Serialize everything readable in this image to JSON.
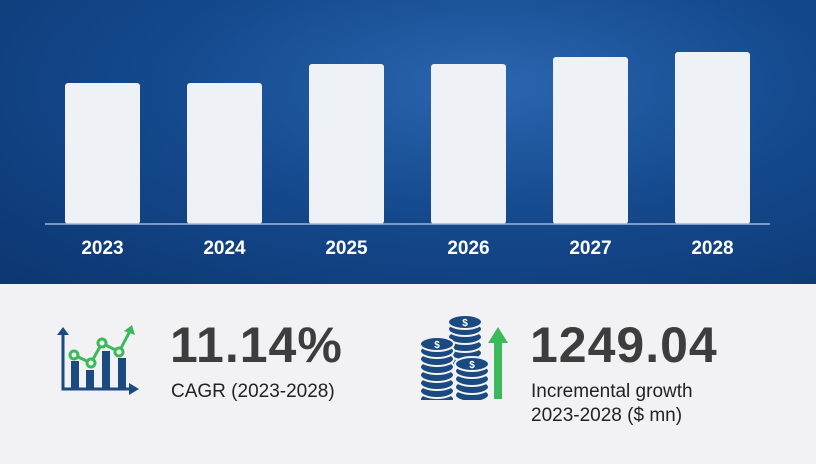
{
  "chart_data": {
    "type": "bar",
    "categories": [
      "2023",
      "2024",
      "2025",
      "2026",
      "2027",
      "2028"
    ],
    "values": [
      141,
      141,
      160,
      160,
      167,
      172
    ],
    "ylim": [
      0,
      175
    ],
    "grid": false,
    "colors": {
      "bar": "#eef1f6",
      "background": "#154a8e"
    }
  },
  "stats": {
    "cagr": {
      "value": "11.14%",
      "label": "CAGR (2023-2028)",
      "icon": "growth-chart-icon"
    },
    "incremental": {
      "value": "1249.04",
      "label_line1": "Incremental growth",
      "label_line2": "2023-2028 ($ mn)",
      "icon": "coins-arrow-up-icon"
    }
  },
  "colors": {
    "accent_green": "#3cb95a",
    "icon_blue": "#1b4a80",
    "text": "#3d3d3d"
  }
}
